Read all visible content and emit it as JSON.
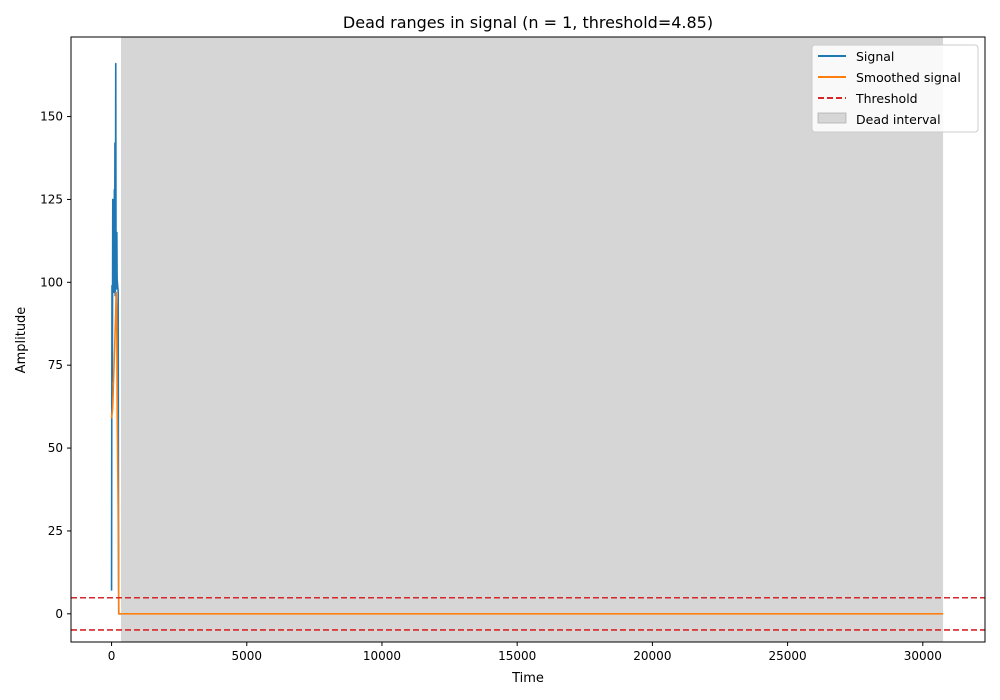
{
  "chart_data": {
    "type": "line",
    "title": "Dead ranges in signal (n = 1, threshold=4.85)",
    "xlabel": "Time",
    "ylabel": "Amplitude",
    "xlim": [
      -1500,
      32300
    ],
    "ylim": [
      -8.5,
      174
    ],
    "xticks": [
      0,
      5000,
      10000,
      15000,
      20000,
      25000,
      30000
    ],
    "yticks": [
      0,
      25,
      50,
      75,
      100,
      125,
      150
    ],
    "threshold": 4.85,
    "legend_position": "top-right",
    "legend": {
      "signal": "Signal",
      "smoothed": "Smoothed signal",
      "threshold": "Threshold",
      "dead": "Dead interval"
    },
    "colors": {
      "signal": "#1f77b4",
      "smoothed": "#ff7f0e",
      "threshold": "#d62728",
      "dead": "#d6d6d6"
    },
    "dead_interval": [
      350,
      30750
    ],
    "series": [
      {
        "key": "signal",
        "x": [
          0,
          8,
          16,
          25,
          35,
          45,
          55,
          65,
          75,
          85,
          95,
          105,
          115,
          125,
          135,
          145,
          155,
          165,
          175,
          185,
          195,
          205,
          215,
          225,
          235,
          245,
          255,
          265,
          275,
          290,
          300,
          320,
          350
        ],
        "values": [
          7,
          60,
          99,
          70,
          90,
          125,
          101,
          118,
          104,
          97,
          112,
          128,
          102,
          142,
          96,
          115,
          166,
          103,
          98,
          110,
          115,
          101,
          100,
          99,
          98,
          97,
          30,
          0,
          0,
          0,
          0,
          0,
          0
        ]
      },
      {
        "key": "smoothed",
        "x": [
          0,
          40,
          80,
          120,
          150,
          170,
          190,
          210,
          240,
          270,
          300,
          330,
          30750
        ],
        "values": [
          59,
          62,
          72,
          82,
          90,
          97,
          92,
          60,
          35,
          0,
          0,
          0,
          0
        ]
      }
    ]
  }
}
